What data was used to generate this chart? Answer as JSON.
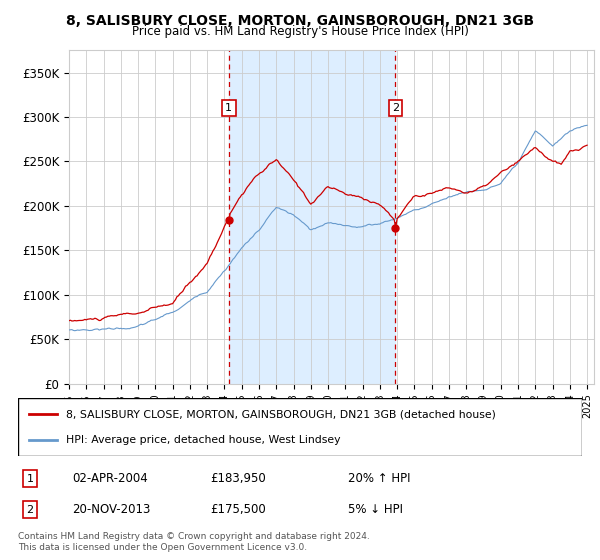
{
  "title": "8, SALISBURY CLOSE, MORTON, GAINSBOROUGH, DN21 3GB",
  "subtitle": "Price paid vs. HM Land Registry's House Price Index (HPI)",
  "ylim": [
    0,
    375000
  ],
  "yticks": [
    0,
    50000,
    100000,
    150000,
    200000,
    250000,
    300000,
    350000
  ],
  "ytick_labels": [
    "£0",
    "£50K",
    "£100K",
    "£150K",
    "£200K",
    "£250K",
    "£300K",
    "£350K"
  ],
  "x_start_year": 1995,
  "x_end_year": 2025,
  "sale1_date": 2004.25,
  "sale1_price": 183950,
  "sale1_label": "1",
  "sale1_date_str": "02-APR-2004",
  "sale1_price_str": "£183,950",
  "sale1_hpi_str": "20% ↑ HPI",
  "sale2_date": 2013.9,
  "sale2_price": 175500,
  "sale2_label": "2",
  "sale2_date_str": "20-NOV-2013",
  "sale2_price_str": "£175,500",
  "sale2_hpi_str": "5% ↓ HPI",
  "red_line_color": "#cc0000",
  "blue_line_color": "#6699cc",
  "shade_color": "#ddeeff",
  "grid_color": "#cccccc",
  "bg_color": "#ffffff",
  "legend_label_red": "8, SALISBURY CLOSE, MORTON, GAINSBOROUGH, DN21 3GB (detached house)",
  "legend_label_blue": "HPI: Average price, detached house, West Lindsey",
  "footer": "Contains HM Land Registry data © Crown copyright and database right 2024.\nThis data is licensed under the Open Government Licence v3.0."
}
